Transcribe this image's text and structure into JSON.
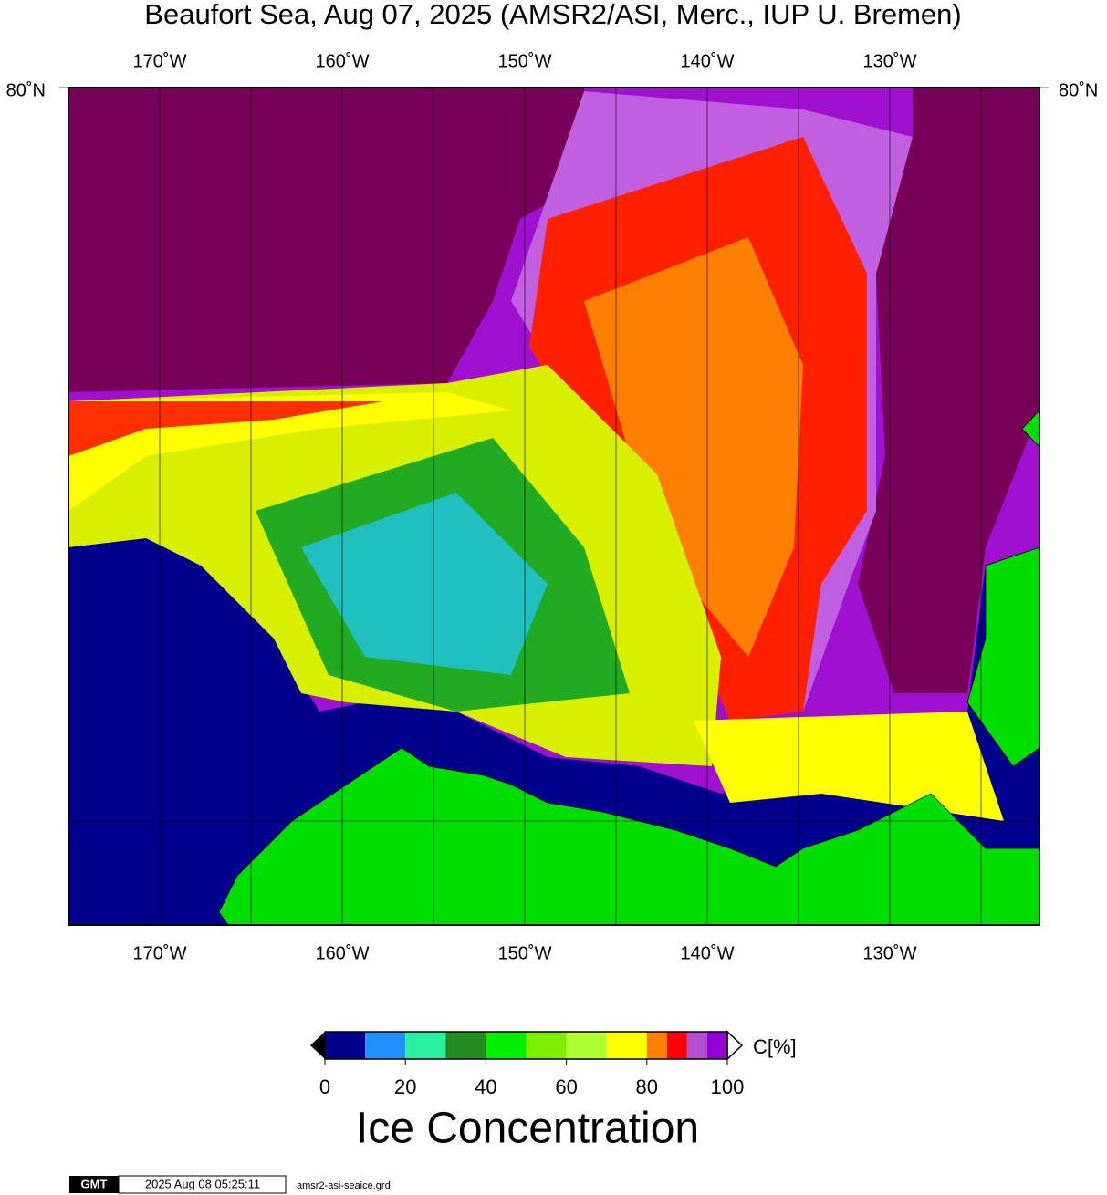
{
  "title": "Beaufort Sea, Aug 07, 2025 (AMSR2/ASI, Merc., IUP U. Bremen)",
  "longitude_labels": [
    "170˚W",
    "160˚W",
    "150˚W",
    "140˚W",
    "130˚W"
  ],
  "latitude_label": "80˚N",
  "colorbar": {
    "bins": [
      0,
      10,
      20,
      30,
      40,
      50,
      60,
      70,
      80,
      85,
      90,
      95,
      100
    ],
    "colors": [
      "#00008c",
      "#1e90ff",
      "#28f0a0",
      "#228b22",
      "#00ee00",
      "#7cf000",
      "#adff2f",
      "#ffff00",
      "#ff8000",
      "#ff0000",
      "#b050d0",
      "#9400d3"
    ],
    "ticks": [
      0,
      20,
      40,
      60,
      80,
      100
    ],
    "unit": "C[%]",
    "title": "Ice Concentration"
  },
  "footer": {
    "logo": "GMT",
    "timestamp": "2025 Aug 08 05:25:11",
    "file": "amsr2-asi-seaice.grd"
  }
}
